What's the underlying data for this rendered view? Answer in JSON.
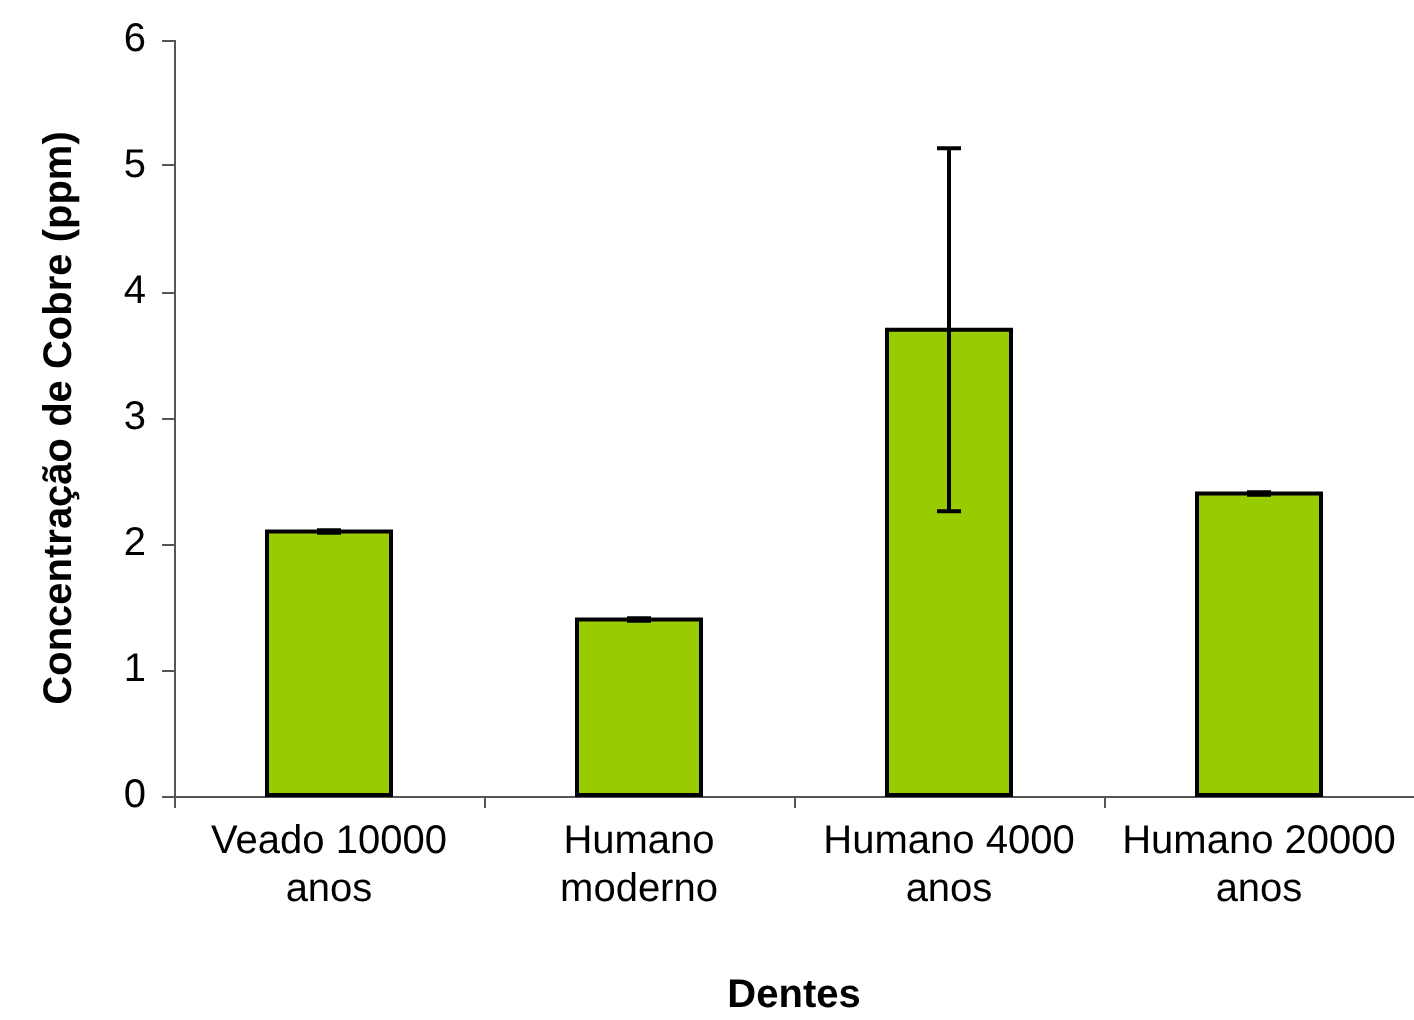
{
  "chart_data": {
    "type": "bar",
    "xlabel": "Dentes",
    "ylabel": "Concentração de Cobre (ppm)",
    "categories": [
      "Veado 10000 anos",
      "Humano moderno",
      "Humano 4000 anos",
      "Humano 20000 anos"
    ],
    "values": [
      2.1,
      1.4,
      3.7,
      2.4
    ],
    "errors": [
      0.01,
      0.01,
      1.44,
      0.01
    ],
    "color": "#99cc00",
    "ylim": [
      0,
      6
    ],
    "yticks": [
      0,
      1,
      2,
      3,
      4,
      5,
      6
    ],
    "grid": false
  }
}
